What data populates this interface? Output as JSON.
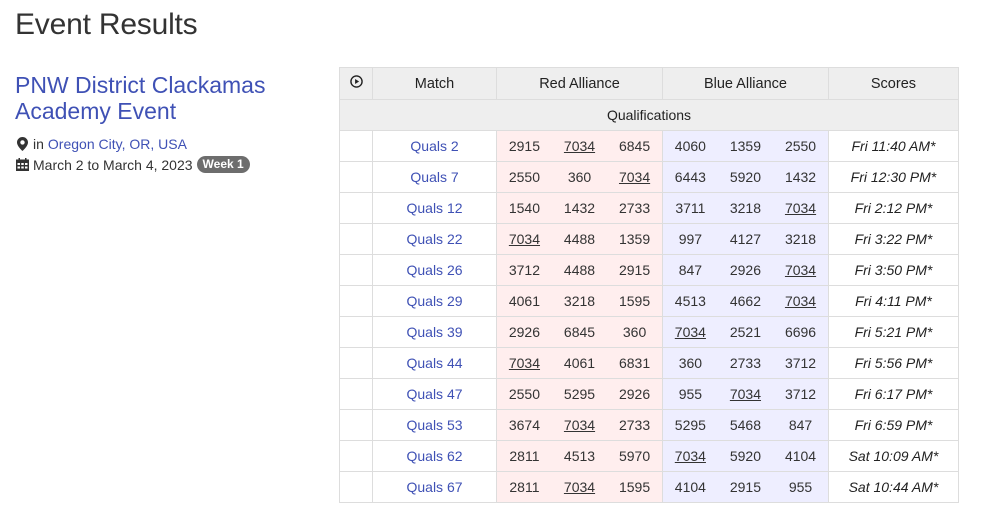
{
  "page": {
    "title": "Event Results"
  },
  "event": {
    "name": "PNW District Clackamas Academy Event",
    "location_prefix": "in",
    "location": "Oregon City, OR, USA",
    "dates": "March 2 to March 4, 2023",
    "week_badge": "Week 1"
  },
  "table": {
    "headers": {
      "match": "Match",
      "red": "Red Alliance",
      "blue": "Blue Alliance",
      "scores": "Scores"
    },
    "section": "Qualifications",
    "rows": [
      {
        "match": "Quals 2",
        "red": [
          "2915",
          "7034",
          "6845"
        ],
        "blue": [
          "4060",
          "1359",
          "2550"
        ],
        "time": "Fri 11:40 AM*"
      },
      {
        "match": "Quals 7",
        "red": [
          "2550",
          "360",
          "7034"
        ],
        "blue": [
          "6443",
          "5920",
          "1432"
        ],
        "time": "Fri 12:30 PM*"
      },
      {
        "match": "Quals 12",
        "red": [
          "1540",
          "1432",
          "2733"
        ],
        "blue": [
          "3711",
          "3218",
          "7034"
        ],
        "time": "Fri 2:12 PM*"
      },
      {
        "match": "Quals 22",
        "red": [
          "7034",
          "4488",
          "1359"
        ],
        "blue": [
          "997",
          "4127",
          "3218"
        ],
        "time": "Fri 3:22 PM*"
      },
      {
        "match": "Quals 26",
        "red": [
          "3712",
          "4488",
          "2915"
        ],
        "blue": [
          "847",
          "2926",
          "7034"
        ],
        "time": "Fri 3:50 PM*"
      },
      {
        "match": "Quals 29",
        "red": [
          "4061",
          "3218",
          "1595"
        ],
        "blue": [
          "4513",
          "4662",
          "7034"
        ],
        "time": "Fri 4:11 PM*"
      },
      {
        "match": "Quals 39",
        "red": [
          "2926",
          "6845",
          "360"
        ],
        "blue": [
          "7034",
          "2521",
          "6696"
        ],
        "time": "Fri 5:21 PM*"
      },
      {
        "match": "Quals 44",
        "red": [
          "7034",
          "4061",
          "6831"
        ],
        "blue": [
          "360",
          "2733",
          "3712"
        ],
        "time": "Fri 5:56 PM*"
      },
      {
        "match": "Quals 47",
        "red": [
          "2550",
          "5295",
          "2926"
        ],
        "blue": [
          "955",
          "7034",
          "3712"
        ],
        "time": "Fri 6:17 PM*"
      },
      {
        "match": "Quals 53",
        "red": [
          "3674",
          "7034",
          "2733"
        ],
        "blue": [
          "5295",
          "5468",
          "847"
        ],
        "time": "Fri 6:59 PM*"
      },
      {
        "match": "Quals 62",
        "red": [
          "2811",
          "4513",
          "5970"
        ],
        "blue": [
          "7034",
          "5920",
          "4104"
        ],
        "time": "Sat 10:09 AM*"
      },
      {
        "match": "Quals 67",
        "red": [
          "2811",
          "7034",
          "1595"
        ],
        "blue": [
          "4104",
          "2915",
          "955"
        ],
        "time": "Sat 10:44 AM*"
      }
    ],
    "focus_team": "7034"
  },
  "icons": {
    "location": "map-marker-icon",
    "calendar": "calendar-icon",
    "play": "play-circle-icon"
  },
  "colors": {
    "link": "#3f51b5",
    "red_alliance_bg": "#ffeeee",
    "blue_alliance_bg": "#eeeeff",
    "header_bg": "#eeeeee",
    "badge_bg": "#6d6d6d"
  }
}
